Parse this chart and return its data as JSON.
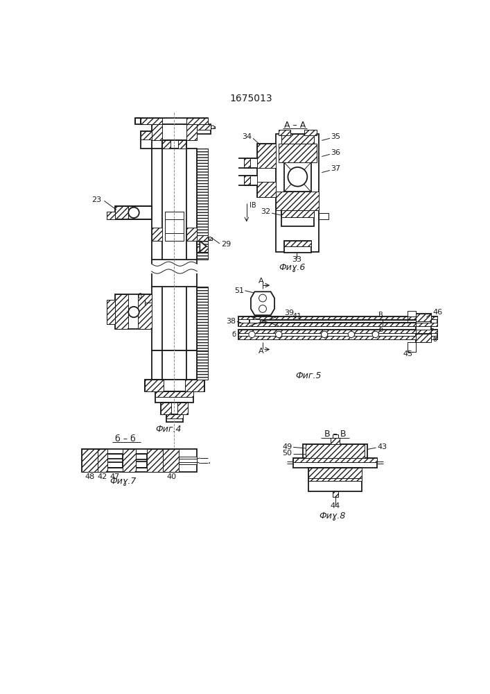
{
  "title": "1675013",
  "bg": "#ffffff",
  "lc": "#1a1a1a",
  "fig4_label": "Фиг.4",
  "fig5_label": "Фиг.5",
  "fig6_label": "Фиɣ.6",
  "fig7_label": "Фиɣ.7",
  "fig8_label": "Фиɣ.8"
}
